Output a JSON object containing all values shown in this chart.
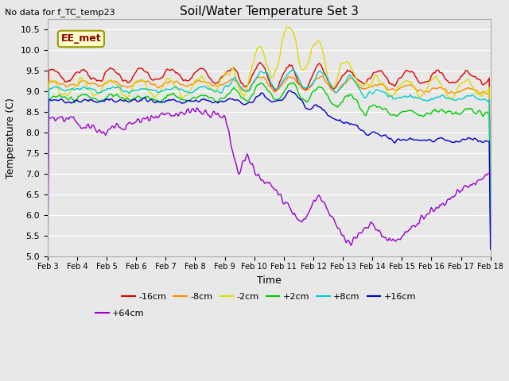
{
  "title": "Soil/Water Temperature Set 3",
  "xlabel": "Time",
  "ylabel": "Temperature (C)",
  "top_left_note": "No data for f_TC_temp23",
  "legend_box_label": "EE_met",
  "ylim": [
    5.0,
    10.75
  ],
  "yticks": [
    5.0,
    5.5,
    6.0,
    6.5,
    7.0,
    7.5,
    8.0,
    8.5,
    9.0,
    9.5,
    10.0,
    10.5
  ],
  "xtick_labels": [
    "Feb 3",
    "Feb 4",
    "Feb 5",
    "Feb 6",
    "Feb 7",
    "Feb 8",
    "Feb 9",
    "Feb 10",
    "Feb 11",
    "Feb 12",
    "Feb 13",
    "Feb 14",
    "Feb 15",
    "Feb 16",
    "Feb 17",
    "Feb 18"
  ],
  "series": [
    {
      "label": "-16cm",
      "color": "#dd0000"
    },
    {
      "label": "-8cm",
      "color": "#ff8c00"
    },
    {
      "label": "-2cm",
      "color": "#dddd00"
    },
    {
      "label": "+2cm",
      "color": "#00cc00"
    },
    {
      "label": "+8cm",
      "color": "#00cccc"
    },
    {
      "label": "+16cm",
      "color": "#0000cc"
    },
    {
      "label": "+64cm",
      "color": "#9900cc"
    }
  ],
  "background_color": "#e8e8e8"
}
